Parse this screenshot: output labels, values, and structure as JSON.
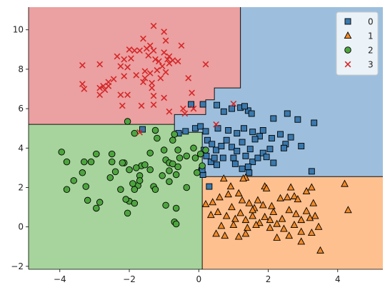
{
  "chart_data": {
    "type": "scatter",
    "title": "",
    "xlabel": "",
    "ylabel": "",
    "xlim": [
      -4.9,
      5.3
    ],
    "ylim": [
      -2.15,
      11.15
    ],
    "xticks": [
      -4,
      -2,
      0,
      2,
      4
    ],
    "yticks": [
      -2,
      0,
      2,
      4,
      6,
      8,
      10
    ],
    "grid": false,
    "legend_position": "top-right",
    "regions": [
      {
        "class": "0",
        "color": "#9dbfdd",
        "polygon": [
          [
            0.2,
            5.7
          ],
          [
            0.2,
            6.45
          ],
          [
            0.45,
            6.45
          ],
          [
            0.45,
            7.05
          ],
          [
            1.2,
            7.05
          ],
          [
            1.2,
            11.15
          ],
          [
            5.3,
            11.15
          ],
          [
            5.3,
            2.55
          ],
          [
            0.1,
            2.55
          ],
          [
            0.1,
            4.8
          ],
          [
            -0.7,
            4.8
          ],
          [
            -0.7,
            5.7
          ]
        ]
      },
      {
        "class": "1",
        "color": "#fec08f",
        "polygon": [
          [
            0.1,
            2.55
          ],
          [
            5.3,
            2.55
          ],
          [
            5.3,
            -2.15
          ],
          [
            0.1,
            -2.15
          ]
        ]
      },
      {
        "class": "2",
        "color": "#a6d49c",
        "polygon": [
          [
            -4.9,
            5.2
          ],
          [
            -0.7,
            5.2
          ],
          [
            -0.7,
            4.8
          ],
          [
            0.1,
            4.8
          ],
          [
            0.1,
            -2.15
          ],
          [
            -4.9,
            -2.15
          ]
        ]
      },
      {
        "class": "3",
        "color": "#eba0a1",
        "polygon": [
          [
            -4.9,
            11.15
          ],
          [
            1.2,
            11.15
          ],
          [
            1.2,
            7.05
          ],
          [
            0.45,
            7.05
          ],
          [
            0.45,
            6.45
          ],
          [
            0.2,
            6.45
          ],
          [
            0.2,
            5.7
          ],
          [
            -0.7,
            5.7
          ],
          [
            -0.7,
            5.2
          ],
          [
            -4.9,
            5.2
          ]
        ]
      }
    ],
    "boundaries": [
      [
        [
          1.2,
          11.15
        ],
        [
          1.2,
          7.05
        ],
        [
          0.45,
          7.05
        ],
        [
          0.45,
          6.45
        ],
        [
          0.2,
          6.45
        ],
        [
          0.2,
          5.7
        ],
        [
          -0.7,
          5.7
        ],
        [
          -0.7,
          5.2
        ],
        [
          -4.9,
          5.2
        ]
      ],
      [
        [
          -0.7,
          5.2
        ],
        [
          -0.7,
          4.8
        ],
        [
          0.1,
          4.8
        ],
        [
          0.1,
          2.55
        ],
        [
          5.3,
          2.55
        ]
      ],
      [
        [
          0.1,
          2.55
        ],
        [
          0.1,
          -2.15
        ]
      ]
    ],
    "series": [
      {
        "name": "0",
        "marker": "square",
        "color": "#3b79ad",
        "points": [
          [
            -0.22,
            6.22
          ],
          [
            0.12,
            6.22
          ],
          [
            0.52,
            6.18
          ],
          [
            0.95,
            6.0
          ],
          [
            0.72,
            5.85
          ],
          [
            1.2,
            6.05
          ],
          [
            1.42,
            5.9
          ],
          [
            1.32,
            6.12
          ],
          [
            1.52,
            5.75
          ],
          [
            2.15,
            5.5
          ],
          [
            2.55,
            5.75
          ],
          [
            2.85,
            5.45
          ],
          [
            3.32,
            5.28
          ],
          [
            -1.62,
            4.95
          ],
          [
            -0.58,
            4.75
          ],
          [
            -0.38,
            4.85
          ],
          [
            -0.1,
            5.0
          ],
          [
            0.05,
            5.1
          ],
          [
            0.2,
            4.85
          ],
          [
            0.55,
            5.0
          ],
          [
            0.85,
            4.9
          ],
          [
            1.1,
            4.75
          ],
          [
            1.3,
            5.0
          ],
          [
            1.55,
            4.82
          ],
          [
            1.75,
            4.6
          ],
          [
            1.85,
            4.9
          ],
          [
            2.1,
            4.5
          ],
          [
            2.35,
            4.7
          ],
          [
            2.5,
            4.2
          ],
          [
            2.65,
            4.55
          ],
          [
            2.95,
            4.1
          ],
          [
            0.25,
            4.4
          ],
          [
            0.38,
            4.2
          ],
          [
            0.5,
            3.9
          ],
          [
            0.65,
            4.1
          ],
          [
            0.8,
            4.4
          ],
          [
            0.95,
            4.05
          ],
          [
            1.1,
            3.85
          ],
          [
            1.25,
            4.3
          ],
          [
            1.35,
            3.6
          ],
          [
            1.48,
            3.95
          ],
          [
            1.55,
            3.3
          ],
          [
            1.62,
            4.45
          ],
          [
            1.7,
            3.5
          ],
          [
            1.85,
            3.75
          ],
          [
            1.95,
            3.55
          ],
          [
            2.05,
            3.95
          ],
          [
            2.15,
            3.25
          ],
          [
            2.45,
            4.0
          ],
          [
            3.25,
            2.82
          ],
          [
            0.22,
            3.6
          ],
          [
            0.35,
            3.3
          ],
          [
            0.45,
            3.5
          ],
          [
            0.52,
            3.15
          ],
          [
            0.7,
            3.5
          ],
          [
            1.0,
            3.5
          ],
          [
            1.05,
            3.2
          ],
          [
            1.25,
            2.95
          ],
          [
            1.42,
            3.05
          ],
          [
            1.45,
            2.75
          ],
          [
            0.08,
            2.85
          ],
          [
            0.12,
            2.65
          ],
          [
            0.3,
            2.05
          ],
          [
            0.15,
            3.9
          ],
          [
            0.1,
            2.9
          ]
        ]
      },
      {
        "name": "1",
        "marker": "triangle",
        "color": "#f28a28",
        "points": [
          [
            0.72,
            2.45
          ],
          [
            1.35,
            2.5
          ],
          [
            1.28,
            2.45
          ],
          [
            4.2,
            2.18
          ],
          [
            0.92,
            2.05
          ],
          [
            1.9,
            2.05
          ],
          [
            1.95,
            1.95
          ],
          [
            2.65,
            2.0
          ],
          [
            3.25,
            2.0
          ],
          [
            3.1,
            1.8
          ],
          [
            2.75,
            1.55
          ],
          [
            0.85,
            1.65
          ],
          [
            0.4,
            1.25
          ],
          [
            0.2,
            1.15
          ],
          [
            1.15,
            1.7
          ],
          [
            0.6,
            1.5
          ],
          [
            0.95,
            1.0
          ],
          [
            1.25,
            1.35
          ],
          [
            1.45,
            1.2
          ],
          [
            1.7,
            1.35
          ],
          [
            1.85,
            1.1
          ],
          [
            2.1,
            1.05
          ],
          [
            2.35,
            1.45
          ],
          [
            2.55,
            1.5
          ],
          [
            2.85,
            1.4
          ],
          [
            3.3,
            1.2
          ],
          [
            0.35,
            0.6
          ],
          [
            0.55,
            0.75
          ],
          [
            0.8,
            0.55
          ],
          [
            1.05,
            0.4
          ],
          [
            1.2,
            0.7
          ],
          [
            1.35,
            0.35
          ],
          [
            1.55,
            0.55
          ],
          [
            1.6,
            0.95
          ],
          [
            1.75,
            0.2
          ],
          [
            1.9,
            0.5
          ],
          [
            2.05,
            0.35
          ],
          [
            2.15,
            0.75
          ],
          [
            2.4,
            0.4
          ],
          [
            2.6,
            0.85
          ],
          [
            2.8,
            0.65
          ],
          [
            2.95,
            0.35
          ],
          [
            3.1,
            0.8
          ],
          [
            3.35,
            0.55
          ],
          [
            3.45,
            0.0
          ],
          [
            3.2,
            0.45
          ],
          [
            4.3,
            0.85
          ],
          [
            0.65,
            0.05
          ],
          [
            1.0,
            0.1
          ],
          [
            1.4,
            -0.05
          ],
          [
            1.65,
            0.1
          ],
          [
            2.05,
            -0.05
          ],
          [
            2.25,
            0.15
          ],
          [
            2.45,
            -0.1
          ],
          [
            2.75,
            0.1
          ],
          [
            2.95,
            -0.25
          ],
          [
            3.25,
            -0.3
          ],
          [
            0.75,
            -0.45
          ],
          [
            1.15,
            -0.5
          ],
          [
            1.35,
            -0.35
          ],
          [
            2.25,
            -0.55
          ],
          [
            2.6,
            -0.45
          ],
          [
            2.95,
            -0.75
          ],
          [
            3.5,
            -1.2
          ],
          [
            0.5,
            -0.35
          ],
          [
            1.55,
            0.85
          ]
        ]
      },
      {
        "name": "2",
        "marker": "circle",
        "color": "#4ea53f",
        "points": [
          [
            -2.05,
            5.35
          ],
          [
            -1.85,
            4.75
          ],
          [
            -1.25,
            4.9
          ],
          [
            -1.2,
            4.5
          ],
          [
            -0.7,
            4.7
          ],
          [
            -0.75,
            4.4
          ],
          [
            -0.6,
            3.05
          ],
          [
            -0.65,
            2.65
          ],
          [
            -3.1,
            3.3
          ],
          [
            -2.95,
            3.7
          ],
          [
            -3.95,
            3.8
          ],
          [
            -3.8,
            3.3
          ],
          [
            -3.3,
            3.3
          ],
          [
            -2.15,
            3.25
          ],
          [
            -2.5,
            3.7
          ],
          [
            -2.5,
            3.3
          ],
          [
            -2.4,
            2.8
          ],
          [
            -2.0,
            2.9
          ],
          [
            -1.65,
            3.1
          ],
          [
            -1.55,
            3.15
          ],
          [
            -1.4,
            3.75
          ],
          [
            -1.0,
            3.9
          ],
          [
            -0.95,
            3.4
          ],
          [
            -0.85,
            3.25
          ],
          [
            -0.75,
            3.2
          ],
          [
            -0.55,
            3.5
          ],
          [
            -0.6,
            3.9
          ],
          [
            -0.35,
            3.6
          ],
          [
            0.2,
            3.9
          ],
          [
            -0.15,
            4.0
          ],
          [
            0.05,
            3.7
          ],
          [
            0.1,
            3.1
          ],
          [
            -0.05,
            2.75
          ],
          [
            -2.2,
            3.25
          ],
          [
            -3.35,
            2.75
          ],
          [
            -1.7,
            2.6
          ],
          [
            -1.75,
            2.1
          ],
          [
            -1.85,
            1.9
          ],
          [
            -2.25,
            1.9
          ],
          [
            -2.55,
            2.5
          ],
          [
            -3.25,
            2.05
          ],
          [
            -3.8,
            1.9
          ],
          [
            -3.6,
            2.35
          ],
          [
            -1.3,
            2.05
          ],
          [
            -1.25,
            1.9
          ],
          [
            -1.05,
            2.6
          ],
          [
            -0.85,
            2.3
          ],
          [
            -0.35,
            2.0
          ],
          [
            -2.0,
            1.3
          ],
          [
            -2.1,
            1.4
          ],
          [
            -2.85,
            1.25
          ],
          [
            -3.2,
            1.35
          ],
          [
            -1.85,
            1.2
          ],
          [
            -2.95,
            0.95
          ],
          [
            -2.05,
            0.7
          ],
          [
            -0.95,
            1.1
          ],
          [
            -0.65,
            0.95
          ],
          [
            -0.7,
            0.25
          ],
          [
            -0.65,
            0.15
          ],
          [
            -0.85,
            2.85
          ],
          [
            -1.9,
            2.2
          ],
          [
            -1.7,
            2.35
          ],
          [
            -1.8,
            3.0
          ],
          [
            -1.4,
            2.9
          ],
          [
            -0.1,
            3.5
          ]
        ]
      },
      {
        "name": "3",
        "marker": "x",
        "color": "#d62728",
        "points": [
          [
            -1.3,
            10.2
          ],
          [
            -1.0,
            9.9
          ],
          [
            -1.6,
            9.55
          ],
          [
            -0.95,
            9.45
          ],
          [
            -1.4,
            9.2
          ],
          [
            -2.0,
            9.0
          ],
          [
            -1.85,
            8.95
          ],
          [
            -1.7,
            8.95
          ],
          [
            -1.5,
            9.05
          ],
          [
            -1.3,
            8.95
          ],
          [
            -0.5,
            9.2
          ],
          [
            -1.0,
            8.85
          ],
          [
            -0.85,
            8.65
          ],
          [
            -0.9,
            8.5
          ],
          [
            -0.85,
            8.3
          ],
          [
            -0.75,
            8.45
          ],
          [
            -0.6,
            8.4
          ],
          [
            -2.35,
            8.65
          ],
          [
            -2.15,
            8.5
          ],
          [
            -1.95,
            8.55
          ],
          [
            -1.45,
            8.7
          ],
          [
            -1.25,
            8.5
          ],
          [
            -1.15,
            8.4
          ],
          [
            -1.05,
            8.15
          ],
          [
            -1.2,
            7.95
          ],
          [
            -0.95,
            7.85
          ],
          [
            -3.35,
            8.2
          ],
          [
            -2.85,
            8.25
          ],
          [
            -2.25,
            8.15
          ],
          [
            -2.05,
            8.1
          ],
          [
            -1.55,
            7.9
          ],
          [
            -2.15,
            7.65
          ],
          [
            -1.8,
            7.7
          ],
          [
            -1.55,
            7.55
          ],
          [
            -1.4,
            7.8
          ],
          [
            -2.45,
            7.5
          ],
          [
            -2.6,
            7.35
          ],
          [
            -2.75,
            7.15
          ],
          [
            -2.6,
            7.15
          ],
          [
            -3.35,
            7.25
          ],
          [
            -3.3,
            7.0
          ],
          [
            -2.85,
            7.05
          ],
          [
            -2.7,
            6.95
          ],
          [
            -1.6,
            7.35
          ],
          [
            -1.35,
            7.3
          ],
          [
            -1.1,
            7.55
          ],
          [
            -1.35,
            7.05
          ],
          [
            -0.3,
            7.55
          ],
          [
            0.2,
            8.25
          ],
          [
            -2.25,
            6.7
          ],
          [
            -2.05,
            6.7
          ],
          [
            -2.85,
            6.7
          ],
          [
            -1.65,
            6.15
          ],
          [
            -1.3,
            6.65
          ],
          [
            -1.0,
            6.55
          ],
          [
            -1.3,
            6.2
          ],
          [
            -2.2,
            6.15
          ],
          [
            -0.2,
            6.8
          ],
          [
            -0.15,
            6.0
          ],
          [
            -0.45,
            6.0
          ],
          [
            -0.85,
            5.85
          ],
          [
            -1.7,
            4.8
          ],
          [
            1.0,
            6.25
          ],
          [
            0.5,
            5.2
          ],
          [
            -0.4,
            5.75
          ]
        ]
      }
    ]
  },
  "legend": {
    "items": [
      {
        "label": "0",
        "marker": "square"
      },
      {
        "label": "1",
        "marker": "triangle"
      },
      {
        "label": "2",
        "marker": "circle"
      },
      {
        "label": "3",
        "marker": "x"
      }
    ]
  }
}
